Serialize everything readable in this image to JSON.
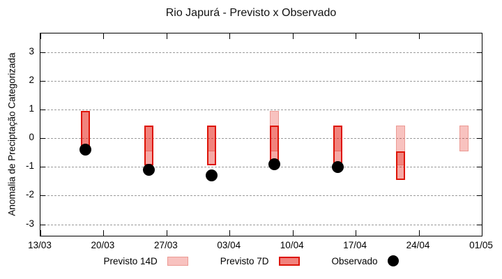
{
  "title": "Rio Japurá - Previsto x Observado",
  "legend": {
    "items": [
      {
        "label": "Previsto 14D",
        "swatch": "box-14d"
      },
      {
        "label": "Previsto 7D",
        "swatch": "box-7d"
      },
      {
        "label": "Observado",
        "swatch": "dot"
      }
    ]
  },
  "colors": {
    "forecast_red": "#e51c12",
    "border_7d": "#dd1407",
    "border_14d": "#ec9a93",
    "fill_14d_flat": "#f8c2bf",
    "fill_7d_flat": "#f1827d",
    "observed": "#000000",
    "grid": "#9a9a9a"
  },
  "chart_data": {
    "type": "bar",
    "subtype": "forecast-range-bars-with-observed-points",
    "title": "Rio Japurá - Previsto x Observado",
    "xlabel": "",
    "ylabel": "Anomalia de Preciptação Categorizada",
    "yticks": [
      3,
      2,
      1,
      0,
      -1,
      -2,
      -3
    ],
    "ylim": [
      -3.4,
      3.65
    ],
    "xticks": [
      "13/03",
      "20/03",
      "27/03",
      "03/04",
      "10/04",
      "17/04",
      "24/04",
      "01/05"
    ],
    "x_axis_span_days": 49,
    "grid": true,
    "legend_position": "bottom",
    "series": [
      {
        "name": "Previsto 14D",
        "type": "range",
        "data": [
          {
            "date": "18/03",
            "low": -0.45,
            "high": 0.95
          },
          {
            "date": "25/03",
            "low": -0.45,
            "high": 0.45
          },
          {
            "date": "01/04",
            "low": -0.45,
            "high": 0.45
          },
          {
            "date": "08/04",
            "low": -0.45,
            "high": 0.95
          },
          {
            "date": "15/04",
            "low": -0.45,
            "high": 0.45
          },
          {
            "date": "22/04",
            "low": -0.95,
            "high": 0.45
          },
          {
            "date": "29/04",
            "low": -0.45,
            "high": 0.45
          }
        ]
      },
      {
        "name": "Previsto 7D",
        "type": "range",
        "data": [
          {
            "date": "18/03",
            "low": -0.45,
            "high": 0.95
          },
          {
            "date": "25/03",
            "low": -0.95,
            "high": 0.45
          },
          {
            "date": "01/04",
            "low": -0.95,
            "high": 0.45
          },
          {
            "date": "08/04",
            "low": -0.95,
            "high": 0.45
          },
          {
            "date": "15/04",
            "low": -0.95,
            "high": 0.45
          },
          {
            "date": "22/04",
            "low": -1.45,
            "high": -0.45
          }
        ]
      },
      {
        "name": "Observado",
        "type": "point",
        "data": [
          {
            "date": "18/03",
            "value": -0.4
          },
          {
            "date": "25/03",
            "value": -1.1
          },
          {
            "date": "01/04",
            "value": -1.3
          },
          {
            "date": "08/04",
            "value": -0.9
          },
          {
            "date": "15/04",
            "value": -1.0
          }
        ]
      }
    ]
  }
}
